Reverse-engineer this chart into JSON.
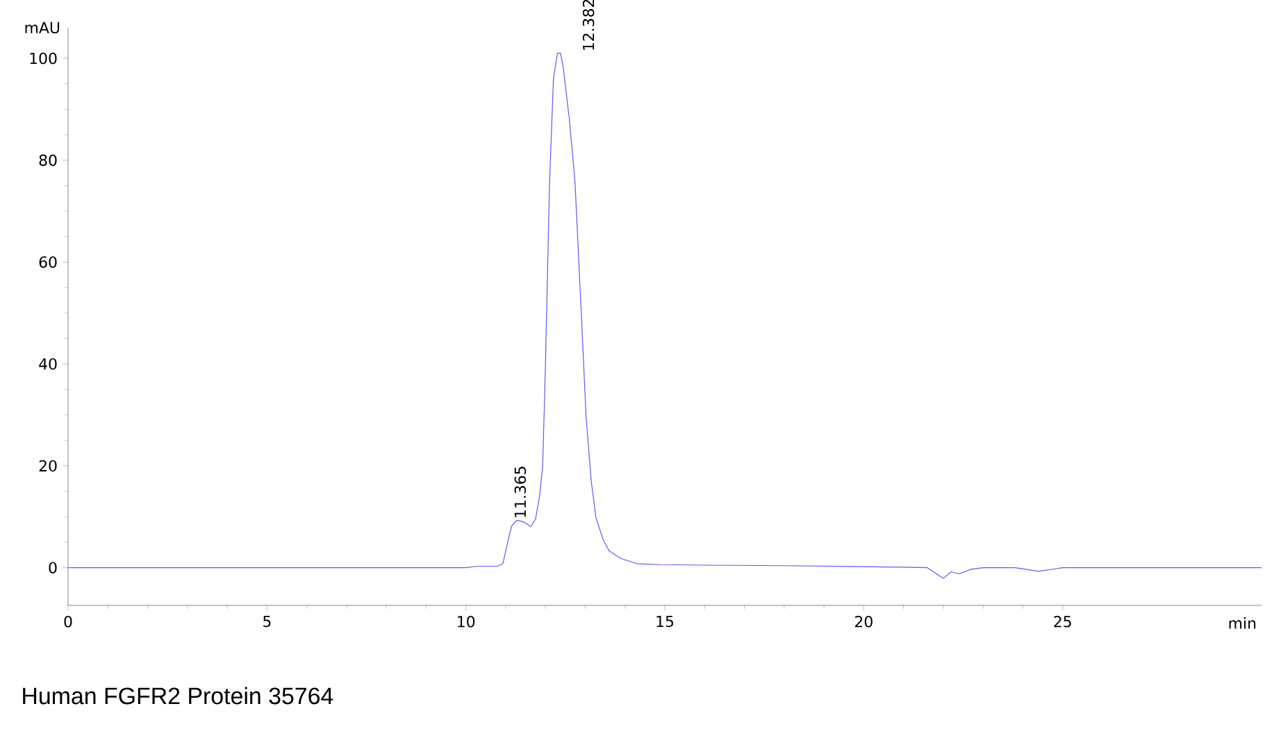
{
  "chart_data": {
    "type": "line",
    "xlabel": "min",
    "ylabel": "mAU",
    "xlim": [
      0,
      30
    ],
    "ylim": [
      -7.4,
      106
    ],
    "xticks": [
      0,
      5,
      10,
      15,
      20,
      25
    ],
    "yticks": [
      0,
      20,
      40,
      60,
      80,
      100
    ],
    "grid": false,
    "marker": "none",
    "line_style": "solid",
    "series": [
      {
        "color": "#5b5bef",
        "x": [
          0,
          2,
          4,
          6,
          8,
          10,
          10.3,
          10.8,
          10.93,
          11.05,
          11.15,
          11.28,
          11.45,
          11.63,
          11.75,
          11.85,
          11.93,
          12.0,
          12.1,
          12.2,
          12.3,
          12.38,
          12.45,
          12.6,
          12.74,
          12.9,
          13.02,
          13.15,
          13.27,
          13.45,
          13.6,
          13.9,
          14.3,
          14.9,
          16,
          18,
          20,
          21,
          21.6,
          22.0,
          22.2,
          22.4,
          22.7,
          23.0,
          23.8,
          24.4,
          25.0,
          27,
          30
        ],
        "values": [
          0,
          0,
          0,
          0,
          0,
          0,
          0.3,
          0.3,
          0.8,
          5,
          8.2,
          9.3,
          9.0,
          8.1,
          9.5,
          14,
          20,
          40,
          75,
          96,
          101,
          101,
          98,
          88,
          76,
          50,
          29.7,
          17,
          9.8,
          5.5,
          3.3,
          1.8,
          0.8,
          0.6,
          0.5,
          0.4,
          0.2,
          0.1,
          0,
          -2.1,
          -0.8,
          -1.2,
          -0.3,
          0,
          0,
          -0.7,
          0,
          0,
          0
        ]
      }
    ],
    "annotations": [
      {
        "text": "11.365",
        "x": 11.365,
        "y": 9.3
      },
      {
        "text": "12.382",
        "x": 12.382,
        "y": 101
      },
      "Human FGFR2 Protein 35764"
    ]
  }
}
